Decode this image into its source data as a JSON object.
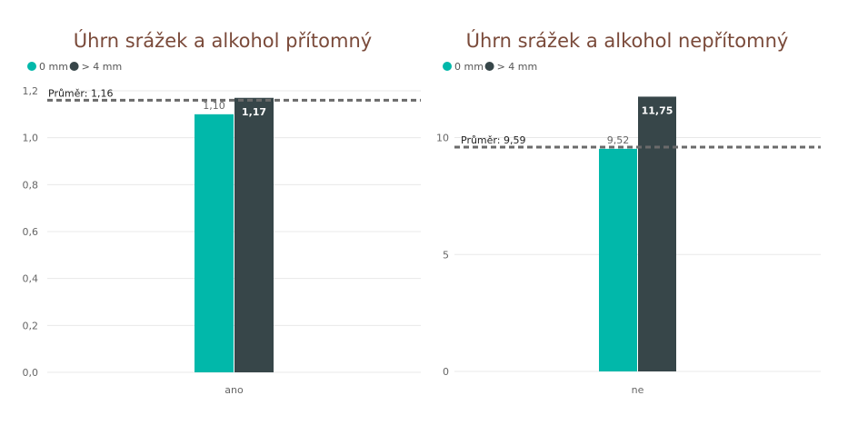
{
  "colors": {
    "series0": "#01b8aa",
    "series1": "#374649"
  },
  "chart_data": [
    {
      "type": "bar",
      "title": "Úhrn srážek a alkohol přítomný",
      "categories": [
        "ano"
      ],
      "series": [
        {
          "name": "0 mm",
          "values": [
            1.1
          ],
          "label": "1,10",
          "color": "#01b8aa"
        },
        {
          "name": "> 4 mm",
          "values": [
            1.17
          ],
          "label": "1,17",
          "color": "#374649"
        }
      ],
      "ylim": [
        0,
        1.2
      ],
      "yticks": [
        0,
        0.2,
        0.4,
        0.6,
        0.8,
        1.0,
        1.2
      ],
      "yticklabels": [
        "0,0",
        "0,2",
        "0,4",
        "0,6",
        "0,8",
        "1,0",
        "1,2"
      ],
      "average": {
        "value": 1.16,
        "label": "Průměr: 1,16"
      },
      "grid": true,
      "legend": "top-left"
    },
    {
      "type": "bar",
      "title": "Úhrn srážek a alkohol nepřítomný",
      "categories": [
        "ne"
      ],
      "series": [
        {
          "name": "0 mm",
          "values": [
            9.52
          ],
          "label": "9,52",
          "color": "#01b8aa"
        },
        {
          "name": "> 4 mm",
          "values": [
            11.75
          ],
          "label": "11,75",
          "color": "#374649"
        }
      ],
      "ylim": [
        0,
        12
      ],
      "yticks": [
        0,
        5,
        10
      ],
      "yticklabels": [
        "0",
        "5",
        "10"
      ],
      "average": {
        "value": 9.59,
        "label": "Průměr: 9,59"
      },
      "grid": true,
      "legend": "top-left"
    }
  ]
}
